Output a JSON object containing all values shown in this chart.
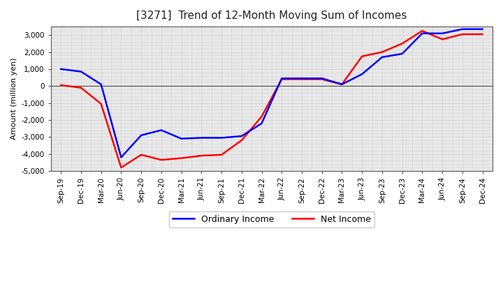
{
  "title": "[3271]  Trend of 12-Month Moving Sum of Incomes",
  "ylabel": "Amount (million yen)",
  "background_color": "#ffffff",
  "plot_bg_color": "#e8e8e8",
  "grid_color": "#bbbbbb",
  "x_labels": [
    "Sep-19",
    "Dec-19",
    "Mar-20",
    "Jun-20",
    "Sep-20",
    "Dec-20",
    "Mar-21",
    "Jun-21",
    "Sep-21",
    "Dec-21",
    "Mar-22",
    "Jun-22",
    "Sep-22",
    "Dec-22",
    "Mar-23",
    "Jun-23",
    "Sep-23",
    "Dec-23",
    "Mar-24",
    "Jun-24",
    "Sep-24",
    "Dec-24"
  ],
  "ordinary_income": [
    1000,
    850,
    100,
    -4200,
    -2900,
    -2600,
    -3100,
    -3050,
    -3050,
    -2950,
    -2200,
    450,
    450,
    450,
    100,
    700,
    1700,
    1900,
    3100,
    3100,
    3350,
    3350
  ],
  "net_income": [
    50,
    -100,
    -1050,
    -4800,
    -4050,
    -4350,
    -4250,
    -4100,
    -4050,
    -3200,
    -1800,
    400,
    400,
    400,
    100,
    1750,
    2000,
    2500,
    3250,
    2750,
    3050,
    3050
  ],
  "ordinary_color": "#0000ff",
  "net_color": "#ff0000",
  "ylim": [
    -5000,
    3500
  ],
  "yticks": [
    -5000,
    -4000,
    -3000,
    -2000,
    -1000,
    0,
    1000,
    2000,
    3000
  ],
  "line_width": 1.8,
  "title_fontsize": 11,
  "ylabel_fontsize": 8,
  "tick_fontsize": 7.5,
  "legend_labels": [
    "Ordinary Income",
    "Net Income"
  ],
  "legend_fontsize": 9
}
